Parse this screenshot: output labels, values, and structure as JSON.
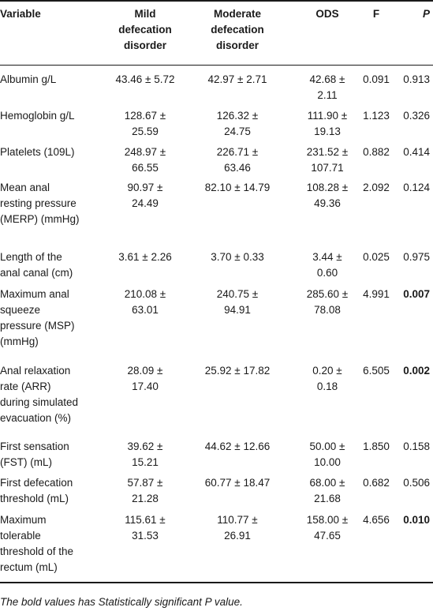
{
  "headers": {
    "variable": "Variable",
    "mild": [
      "Mild",
      "defecation",
      "disorder"
    ],
    "moderate": [
      "Moderate",
      "defecation",
      "disorder"
    ],
    "ods": "ODS",
    "f": "F",
    "p": "P"
  },
  "rows": [
    {
      "variable": [
        "Albumin g/L"
      ],
      "mild": [
        "43.46 ± 5.72"
      ],
      "moderate": [
        "42.97 ± 2.71"
      ],
      "ods": [
        "42.68 ±",
        "2.11"
      ],
      "f": "0.091",
      "p": "0.913",
      "p_bold": false
    },
    {
      "variable": [
        "Hemoglobin g/L"
      ],
      "mild": [
        "128.67 ±",
        "25.59"
      ],
      "moderate": [
        "126.32 ±",
        "24.75"
      ],
      "ods": [
        "111.90 ±",
        "19.13"
      ],
      "f": "1.123",
      "p": "0.326",
      "p_bold": false
    },
    {
      "variable": [
        "Platelets (109L)"
      ],
      "mild": [
        "248.97 ±",
        "66.55"
      ],
      "moderate": [
        "226.71 ±",
        "63.46"
      ],
      "ods": [
        "231.52 ±",
        "107.71"
      ],
      "f": "0.882",
      "p": "0.414",
      "p_bold": false
    },
    {
      "variable": [
        "Mean anal",
        "resting pressure",
        "(MERP) (mmHg)"
      ],
      "mild": [
        "90.97 ±",
        "24.49"
      ],
      "moderate": [
        "82.10 ± 14.79"
      ],
      "ods": [
        "108.28 ±",
        "49.36"
      ],
      "f": "2.092",
      "p": "0.124",
      "p_bold": false
    },
    {
      "variable": [
        "Length of the",
        "anal canal (cm)"
      ],
      "mild": [
        "3.61 ± 2.26"
      ],
      "moderate": [
        "3.70 ± 0.33"
      ],
      "ods": [
        "3.44 ±",
        "0.60"
      ],
      "f": "0.025",
      "p": "0.975",
      "p_bold": false
    },
    {
      "variable": [
        "Maximum anal",
        "squeeze",
        "pressure (MSP)",
        "(mmHg)"
      ],
      "mild": [
        "210.08 ±",
        "63.01"
      ],
      "moderate": [
        "240.75 ±",
        "94.91"
      ],
      "ods": [
        "285.60 ±",
        "78.08"
      ],
      "f": "4.991",
      "p": "0.007",
      "p_bold": true
    },
    {
      "variable": [
        "Anal relaxation",
        "rate (ARR)",
        "during simulated",
        "evacuation (%)"
      ],
      "mild": [
        "28.09 ±",
        "17.40"
      ],
      "moderate": [
        "25.92 ± 17.82"
      ],
      "ods": [
        "0.20 ±",
        "0.18"
      ],
      "f": "6.505",
      "p": "0.002",
      "p_bold": true
    },
    {
      "variable": [
        "First sensation",
        "(FST) (mL)"
      ],
      "mild": [
        "39.62 ±",
        "15.21"
      ],
      "moderate": [
        "44.62 ± 12.66"
      ],
      "ods": [
        "50.00 ±",
        "10.00"
      ],
      "f": "1.850",
      "p": "0.158",
      "p_bold": false
    },
    {
      "variable": [
        "First defecation",
        "threshold (mL)"
      ],
      "mild": [
        "57.87 ±",
        "21.28"
      ],
      "moderate": [
        "60.77 ± 18.47"
      ],
      "ods": [
        "68.00 ±",
        "21.68"
      ],
      "f": "0.682",
      "p": "0.506",
      "p_bold": false
    },
    {
      "variable": [
        "Maximum",
        "tolerable",
        "threshold of the",
        "rectum (mL)"
      ],
      "mild": [
        "115.61 ±",
        "31.53"
      ],
      "moderate": [
        "110.77 ±",
        "26.91"
      ],
      "ods": [
        "158.00 ±",
        "47.65"
      ],
      "f": "4.656",
      "p": "0.010",
      "p_bold": true
    }
  ],
  "footnote": "The bold values has Statistically significant P value."
}
